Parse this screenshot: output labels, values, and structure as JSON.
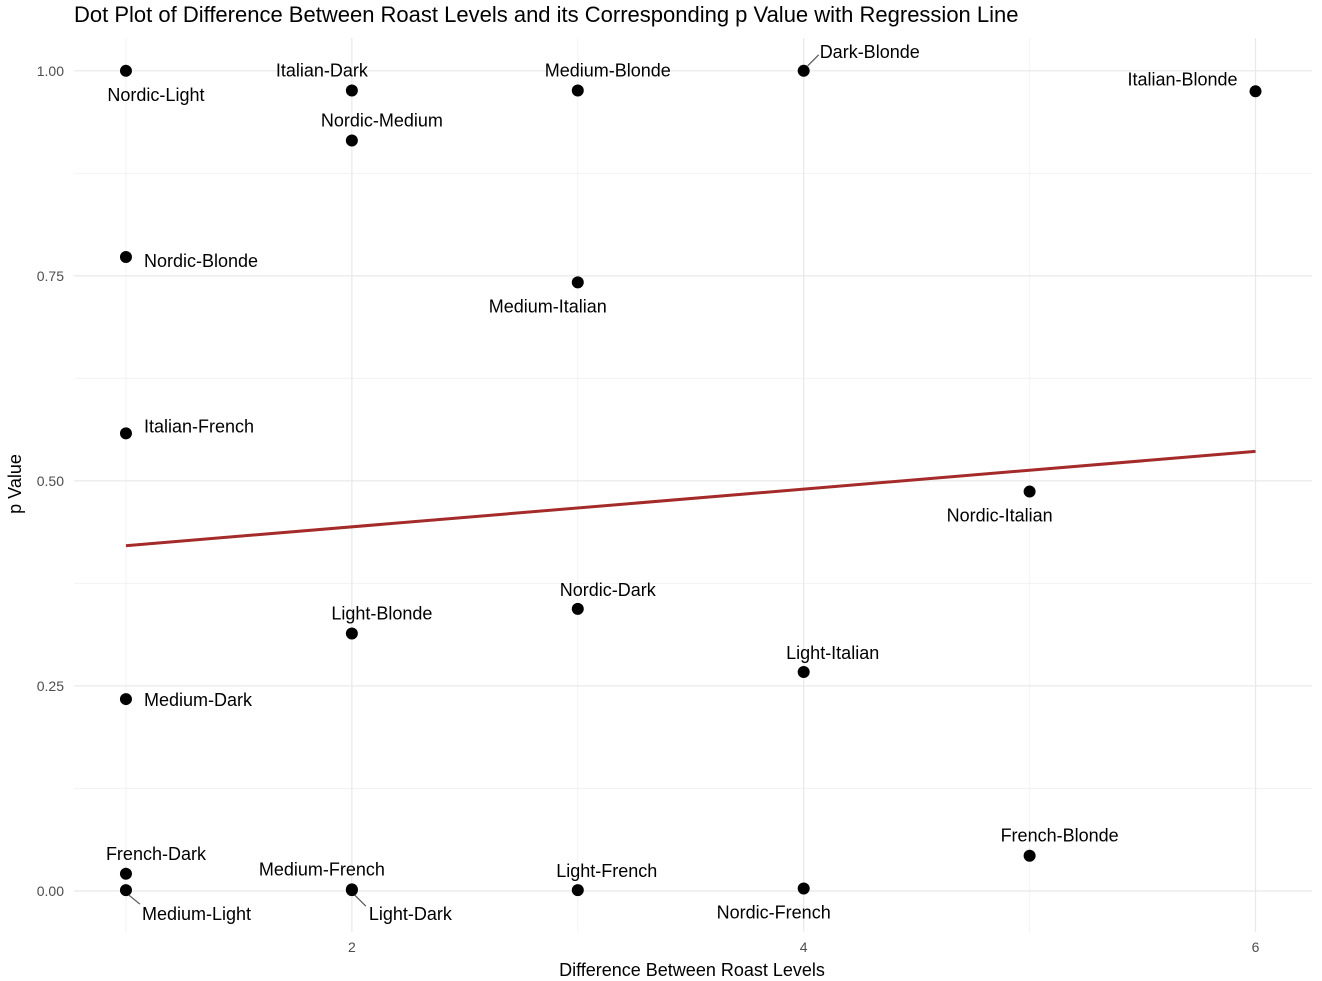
{
  "chart_data": {
    "type": "scatter",
    "title": "Dot Plot of Difference Between Roast Levels and its Corresponding p Value with Regression Line",
    "xlabel": "Difference Between Roast Levels",
    "ylabel": "p Value",
    "xlim": [
      0.77,
      6.25
    ],
    "ylim": [
      -0.05,
      1.04
    ],
    "x_ticks": [
      2,
      4,
      6
    ],
    "y_ticks": [
      0.0,
      0.25,
      0.5,
      0.75,
      1.0
    ],
    "x_tick_labels": [
      "2",
      "4",
      "6"
    ],
    "y_tick_labels": [
      "0.00",
      "0.25",
      "0.50",
      "0.75",
      "1.00"
    ],
    "x_minor_gridlines": [
      1,
      3,
      5
    ],
    "y_minor_gridlines": [
      0.125,
      0.375,
      0.625,
      0.875
    ],
    "grid": true,
    "legend": "none",
    "point_color": "#000000",
    "regression_color": "#a52a2a",
    "points": [
      {
        "label": "Nordic-Light",
        "x": 1,
        "y": 1.0
      },
      {
        "label": "Italian-Dark",
        "x": 2,
        "y": 0.976
      },
      {
        "label": "Nordic-Medium",
        "x": 2,
        "y": 0.915
      },
      {
        "label": "Medium-Blonde",
        "x": 3,
        "y": 0.976
      },
      {
        "label": "Dark-Blonde",
        "x": 4,
        "y": 1.0
      },
      {
        "label": "Italian-Blonde",
        "x": 6,
        "y": 0.975
      },
      {
        "label": "Nordic-Blonde",
        "x": 1,
        "y": 0.773
      },
      {
        "label": "Medium-Italian",
        "x": 3,
        "y": 0.742
      },
      {
        "label": "Italian-French",
        "x": 1,
        "y": 0.558
      },
      {
        "label": "Nordic-Italian",
        "x": 5,
        "y": 0.487
      },
      {
        "label": "Nordic-Dark",
        "x": 3,
        "y": 0.344
      },
      {
        "label": "Light-Blonde",
        "x": 2,
        "y": 0.314
      },
      {
        "label": "Light-Italian",
        "x": 4,
        "y": 0.267
      },
      {
        "label": "Medium-Dark",
        "x": 1,
        "y": 0.234
      },
      {
        "label": "French-Blonde",
        "x": 5,
        "y": 0.043
      },
      {
        "label": "French-Dark",
        "x": 1,
        "y": 0.021
      },
      {
        "label": "Medium-Light",
        "x": 1,
        "y": 0.001
      },
      {
        "label": "Medium-French",
        "x": 2,
        "y": 0.002
      },
      {
        "label": "Light-Dark",
        "x": 2,
        "y": 0.001
      },
      {
        "label": "Light-French",
        "x": 3,
        "y": 0.001
      },
      {
        "label": "Nordic-French",
        "x": 4,
        "y": 0.003
      }
    ],
    "regression_line": {
      "x": [
        1,
        6
      ],
      "y": [
        0.421,
        0.536
      ]
    }
  }
}
